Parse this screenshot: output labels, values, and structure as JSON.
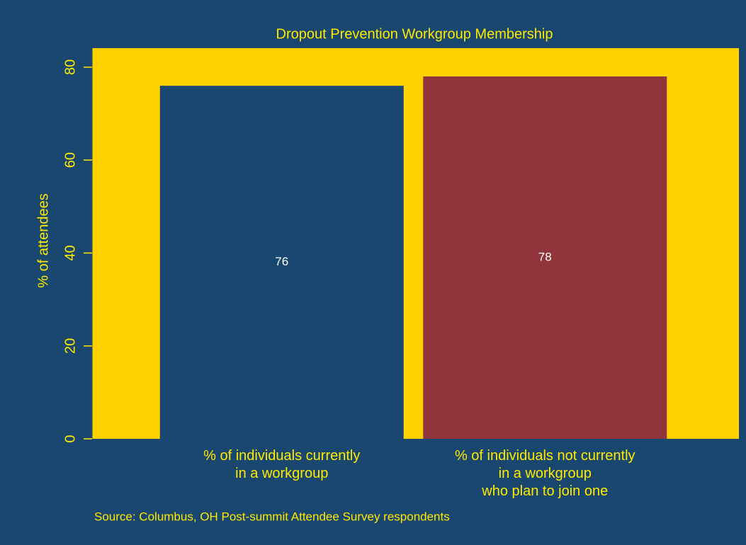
{
  "chart_data": {
    "type": "bar",
    "title": "Dropout Prevention Workgroup Membership",
    "y_label": "% of attendees",
    "source": "Source: Columbus, OH Post-summit Attendee Survey respondents",
    "categories": [
      "% of individuals currently\nin a workgroup",
      "% of individuals not currently\nin a workgroup\nwho plan to join one"
    ],
    "values": [
      76,
      78
    ],
    "colors": [
      "#1a476f",
      "#90353b"
    ],
    "ylim": [
      0,
      84.1
    ],
    "yticks": [
      0,
      20,
      40,
      60,
      80
    ],
    "grid": false
  }
}
